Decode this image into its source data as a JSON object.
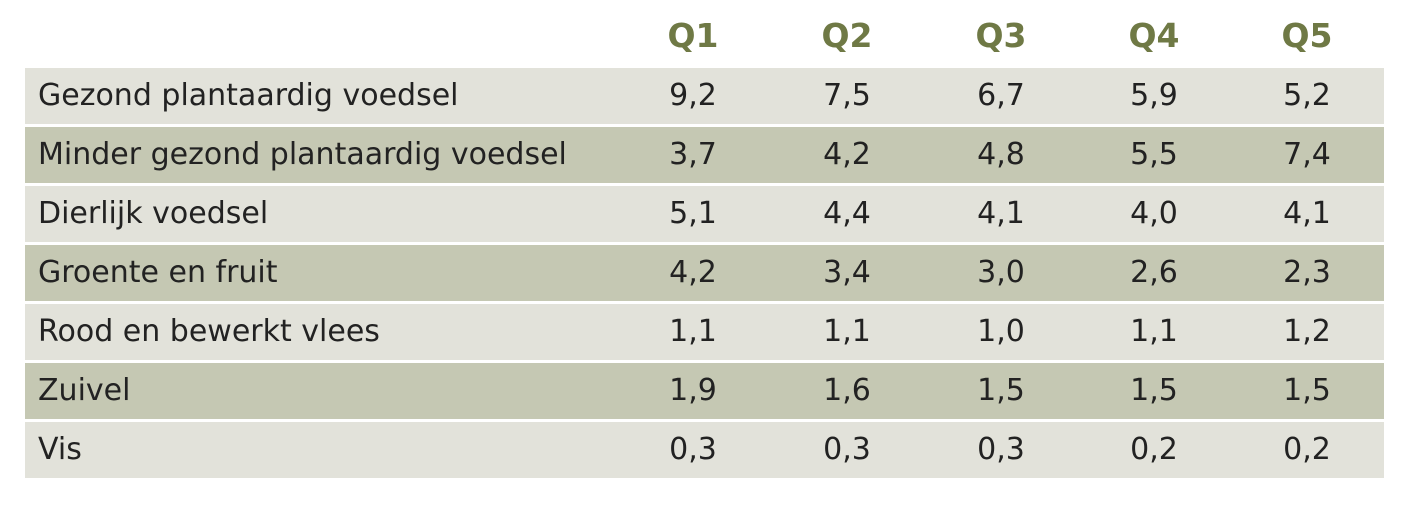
{
  "table": {
    "columns": [
      "Q1",
      "Q2",
      "Q3",
      "Q4",
      "Q5"
    ],
    "rows": [
      {
        "label": "Gezond plantaardig voedsel",
        "values": [
          "9,2",
          "7,5",
          "6,7",
          "5,9",
          "5,2"
        ]
      },
      {
        "label": "Minder gezond plantaardig voedsel",
        "values": [
          "3,7",
          "4,2",
          "4,8",
          "5,5",
          "7,4"
        ]
      },
      {
        "label": "Dierlijk voedsel",
        "values": [
          "5,1",
          "4,4",
          "4,1",
          "4,0",
          "4,1"
        ]
      },
      {
        "label": "Groente en fruit",
        "values": [
          "4,2",
          "3,4",
          "3,0",
          "2,6",
          "2,3"
        ]
      },
      {
        "label": "Rood en bewerkt vlees",
        "values": [
          "1,1",
          "1,1",
          "1,0",
          "1,1",
          "1,2"
        ]
      },
      {
        "label": "Zuivel",
        "values": [
          "1,9",
          "1,6",
          "1,5",
          "1,5",
          "1,5"
        ]
      },
      {
        "label": "Vis",
        "values": [
          "0,3",
          "0,3",
          "0,3",
          "0,2",
          "0,2"
        ]
      }
    ]
  },
  "colors": {
    "header_text": "#6f7945",
    "row_light": "#e2e2da",
    "row_dark": "#c5c8b3"
  }
}
